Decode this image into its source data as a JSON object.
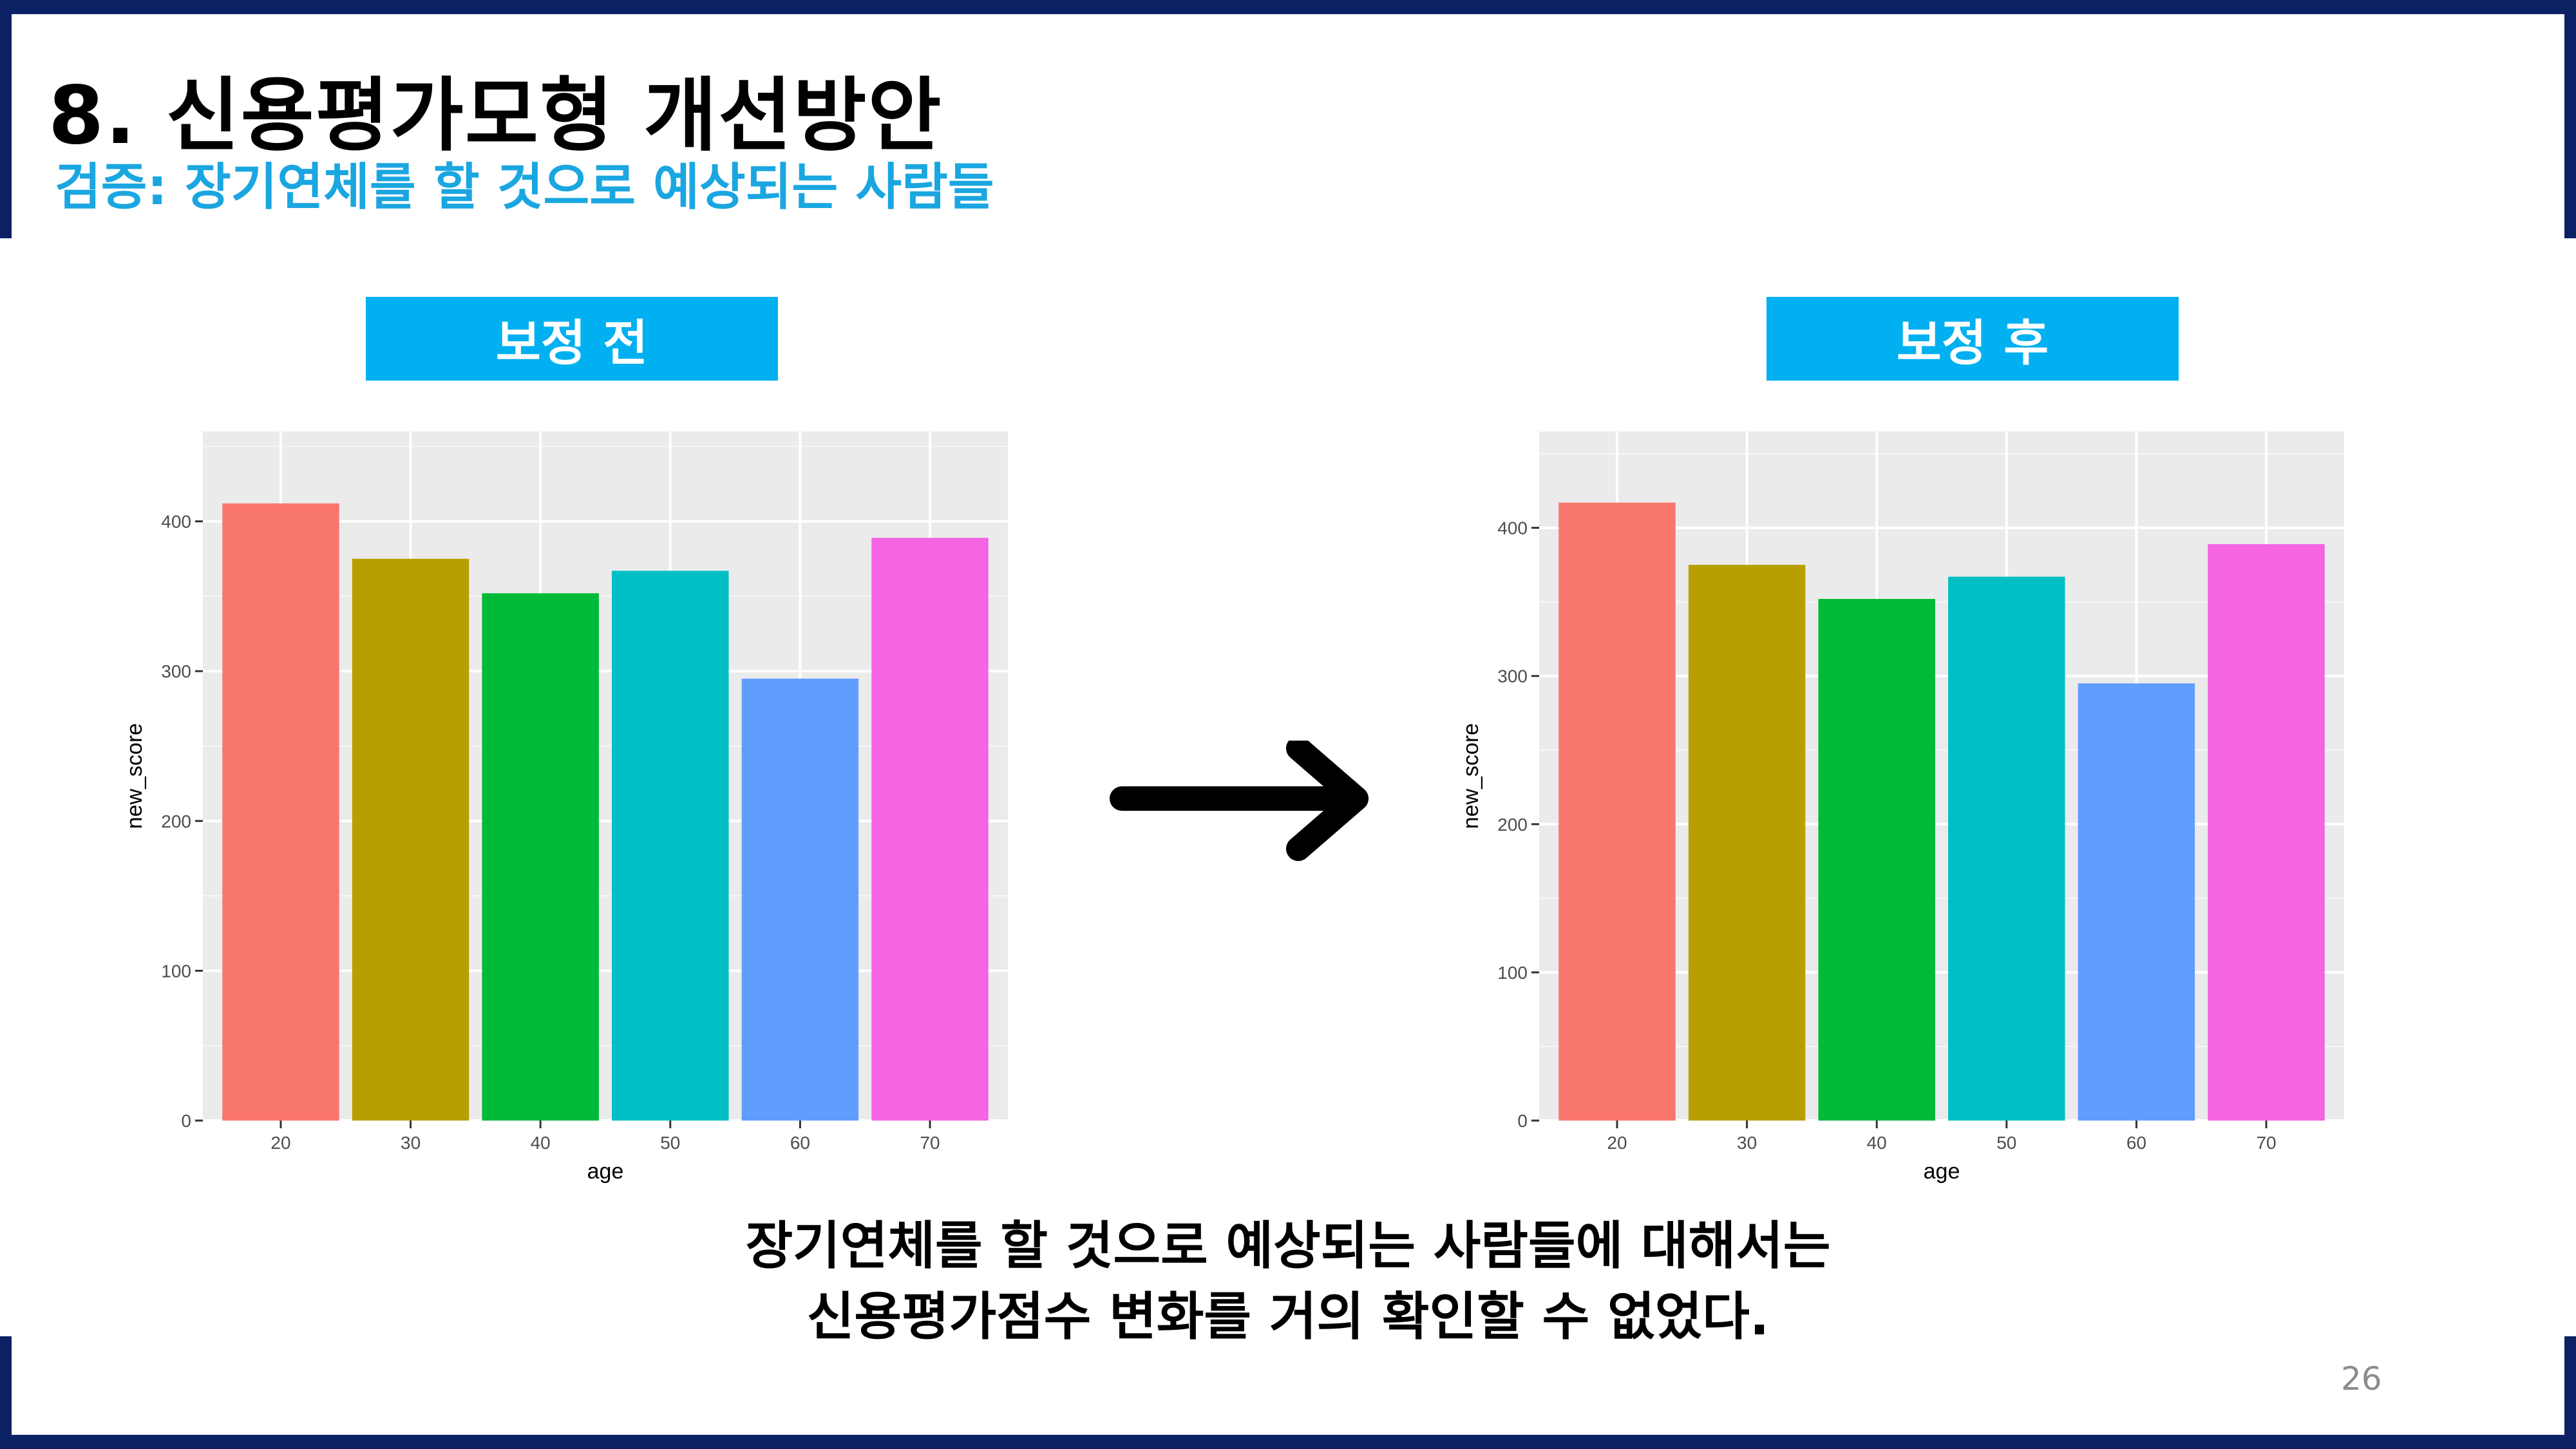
{
  "slide": {
    "title": "8. 신용평가모형 개선방안",
    "subtitle": "검증: 장기연체를 할 것으로 예상되는 사람들",
    "caption_line1": "장기연체를 할 것으로 예상되는 사람들에 대해서는",
    "caption_line2": "신용평가점수 변화를 거의 확인할 수 없었다.",
    "page_number": "26",
    "accent_color": "#00b0f0",
    "frame_color": "#0b2163"
  },
  "panels": {
    "before_label": "보정 전",
    "after_label": "보정 후"
  },
  "chart_data": [
    {
      "type": "bar",
      "categories": [
        "20",
        "30",
        "40",
        "50",
        "60",
        "70"
      ],
      "values": [
        412,
        375,
        352,
        367,
        295,
        389
      ],
      "colors": [
        "#F8766D",
        "#B79F00",
        "#00BA38",
        "#00BFC4",
        "#619CFF",
        "#F564E3"
      ],
      "title": "",
      "xlabel": "age",
      "ylabel": "new_score",
      "ylim": [
        0,
        460
      ],
      "yticks": [
        "0",
        "100",
        "200",
        "300",
        "400"
      ],
      "grid": true
    },
    {
      "type": "bar",
      "categories": [
        "20",
        "30",
        "40",
        "50",
        "60",
        "70"
      ],
      "values": [
        417,
        375,
        352,
        367,
        295,
        389
      ],
      "colors": [
        "#F8766D",
        "#B79F00",
        "#00BA38",
        "#00BFC4",
        "#619CFF",
        "#F564E3"
      ],
      "title": "",
      "xlabel": "age",
      "ylabel": "new_score",
      "ylim": [
        0,
        465
      ],
      "yticks": [
        "0",
        "100",
        "200",
        "300",
        "400"
      ],
      "grid": true
    }
  ]
}
